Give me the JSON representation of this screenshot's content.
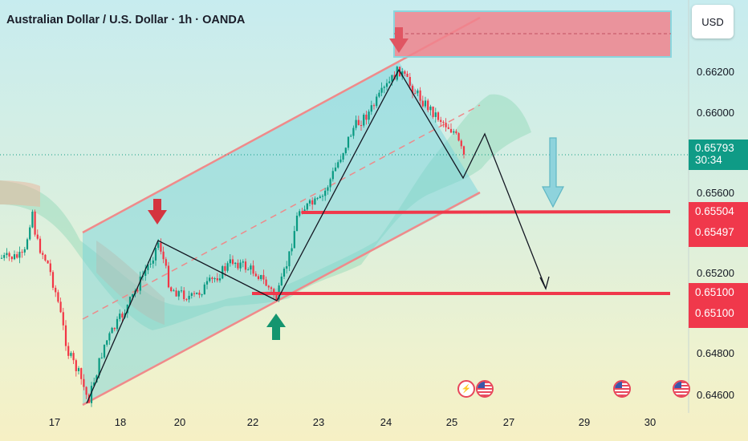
{
  "header": {
    "title": "Australian Dollar / U.S. Dollar · 1h · OANDA"
  },
  "toolbar": {
    "currency_label": "USD"
  },
  "chart_data": {
    "type": "candlestick",
    "symbol": "Australian Dollar / U.S. Dollar",
    "interval": "1h",
    "source": "OANDA",
    "y_ticks": [
      "0.66200",
      "0.66000",
      "0.65600",
      "0.65200",
      "0.64800",
      "0.64600"
    ],
    "x_ticks": [
      "17",
      "18",
      "20",
      "22",
      "23",
      "24",
      "25",
      "27",
      "29",
      "30"
    ],
    "current_price": "0.65793",
    "countdown": "30:34",
    "price_labels": [
      {
        "value": "0.65504",
        "color": "#f0384b"
      },
      {
        "value": "0.65497",
        "color": "#f0384b"
      },
      {
        "value": "0.65100",
        "color": "#f0384b"
      },
      {
        "value": "0.65100",
        "color": "#f0384b"
      }
    ],
    "colors": {
      "up_candle": "#089981",
      "down_candle": "#f23645",
      "support_lines": "#f0384b",
      "channel_fill": "#7fd3dc",
      "resistance_zone": "#f0848e"
    },
    "annotations": [
      "down-arrow-marker",
      "up-arrow-marker",
      "zigzag-projection",
      "ascending-channel",
      "resistance-zone",
      "support-lines"
    ],
    "events": [
      {
        "icon": "lightning-icon"
      },
      {
        "icon": "us-flag-icon"
      },
      {
        "icon": "us-flag-icon"
      },
      {
        "icon": "us-flag-icon"
      }
    ]
  }
}
